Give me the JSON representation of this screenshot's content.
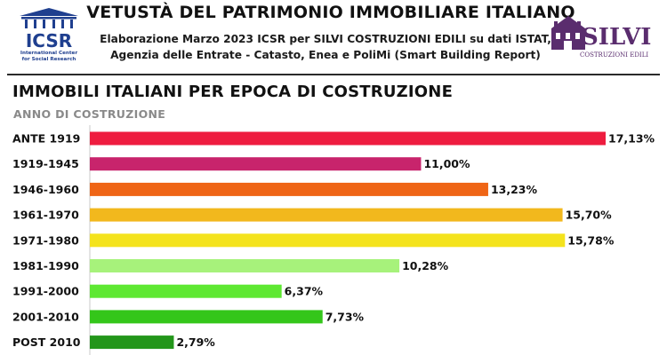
{
  "header": {
    "title": "VETUSTÀ DEL PATRIMONIO IMMOBILIARE ITALIANO",
    "subtitle_line1": "Elaborazione Marzo 2023 ICSR per SILVI COSTRUZIONI EDILI su dati ISTAT,",
    "subtitle_line2": "Agenzia delle Entrate - Catasto, Enea e PoliMi (Smart Building Report)",
    "left_logo": {
      "name": "ICSR",
      "caption_line1": "International Center",
      "caption_line2": "for Social Research",
      "color": "#1f3f8f"
    },
    "right_logo": {
      "name": "SILVI",
      "caption": "COSTRUZIONI EDILI",
      "color": "#5a2d6e"
    }
  },
  "chart_data": {
    "type": "bar",
    "orientation": "horizontal",
    "title": "IMMOBILI ITALIANI PER EPOCA DI COSTRUZIONE",
    "ylabel": "ANNO DI COSTRUZIONE",
    "xlabel": "",
    "categories": [
      "ANTE 1919",
      "1919-1945",
      "1946-1960",
      "1961-1970",
      "1971-1980",
      "1981-1990",
      "1991-2000",
      "2001-2010",
      "POST 2010"
    ],
    "values": [
      17.13,
      11.0,
      13.23,
      15.7,
      15.78,
      10.28,
      6.37,
      7.73,
      2.79
    ],
    "value_labels": [
      "17,13%",
      "11,00%",
      "13,23%",
      "15,70%",
      "15,78%",
      "10,28%",
      "6,37%",
      "7,73%",
      "2,79%"
    ],
    "colors": [
      "#ee1c3f",
      "#c8246c",
      "#ef6516",
      "#f2b81d",
      "#f4e31d",
      "#a7f27b",
      "#5ee832",
      "#34c61a",
      "#23961a"
    ],
    "xlim": [
      0,
      17.13
    ],
    "grid": false,
    "legend": "none"
  }
}
